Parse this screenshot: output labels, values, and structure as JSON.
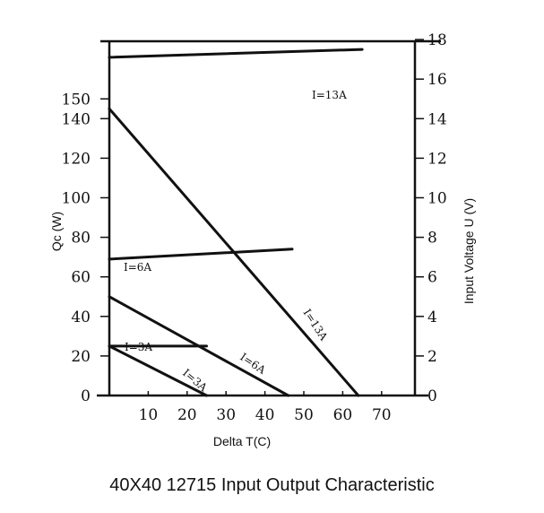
{
  "chart_data": {
    "type": "line",
    "title": "40X40  12715  Input Output Characteristic",
    "xlabel": "Delta T(C)",
    "ylabel_left": "Qc (W)",
    "ylabel_right": "Input Voltage U (V)",
    "xlim": [
      0,
      72
    ],
    "ylim_left": [
      0,
      160
    ],
    "ylim_right": [
      0,
      20
    ],
    "x_ticks": [
      "10",
      "20",
      "30",
      "40",
      "50",
      "60",
      "70"
    ],
    "y_left_ticks": [
      "0",
      "20",
      "40",
      "60",
      "80",
      "100",
      "120",
      "140",
      "150"
    ],
    "y_right_ticks": [
      "0",
      "2",
      "4",
      "6",
      "8",
      "10",
      "12",
      "14",
      "16",
      "18"
    ],
    "grid": false,
    "series": [
      {
        "name": "I=13A",
        "axis": "left",
        "kind": "Qc",
        "x": [
          0,
          64
        ],
        "y": [
          145,
          0
        ]
      },
      {
        "name": "I=6A",
        "axis": "left",
        "kind": "Qc",
        "x": [
          0,
          46
        ],
        "y": [
          50,
          0
        ]
      },
      {
        "name": "I=3A",
        "axis": "left",
        "kind": "Qc",
        "x": [
          0,
          25
        ],
        "y": [
          25,
          0
        ]
      },
      {
        "name": "I=13A",
        "axis": "right",
        "kind": "voltage",
        "x": [
          0,
          65
        ],
        "y": [
          17.1,
          17.5
        ]
      },
      {
        "name": "I=6A",
        "axis": "right",
        "kind": "voltage",
        "x": [
          0,
          47
        ],
        "y": [
          6.9,
          7.4
        ]
      },
      {
        "name": "I=3A",
        "axis": "right",
        "kind": "voltage",
        "x": [
          0,
          25
        ],
        "y": [
          2.5,
          2.5
        ]
      }
    ]
  }
}
